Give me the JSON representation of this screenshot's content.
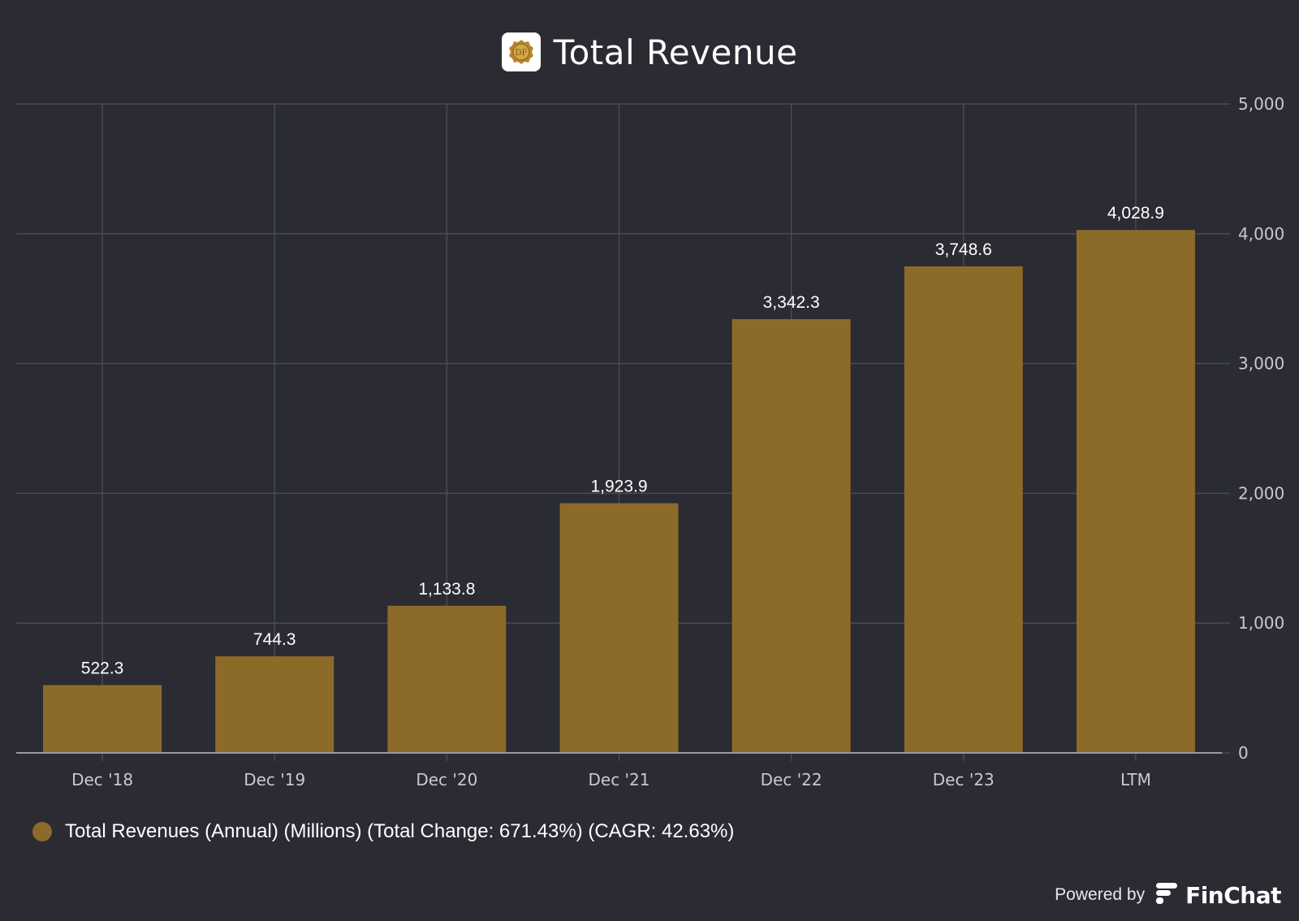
{
  "header": {
    "title": "Total Revenue",
    "logo_text": "DF",
    "logo_icon": "company-logo-icon"
  },
  "chart_data": {
    "type": "bar",
    "title": "Total Revenue",
    "categories": [
      "Dec '18",
      "Dec '19",
      "Dec '20",
      "Dec '21",
      "Dec '22",
      "Dec '23",
      "LTM"
    ],
    "series": [
      {
        "name": "Total Revenues (Annual) (Millions) (Total Change: 671.43%) (CAGR: 42.63%)",
        "values": [
          522.3,
          744.3,
          1133.8,
          1923.9,
          3342.3,
          3748.6,
          4028.9
        ],
        "value_labels": [
          "522.3",
          "744.3",
          "1,133.8",
          "1,923.9",
          "3,342.3",
          "3,748.6",
          "4,028.9"
        ]
      }
    ],
    "ylim": [
      0,
      5000
    ],
    "yticks": [
      0,
      1000,
      2000,
      3000,
      4000,
      5000
    ],
    "ytick_labels": [
      "0",
      "1,000",
      "2,000",
      "3,000",
      "4,000",
      "5,000"
    ],
    "y_axis_side": "right",
    "grid": true,
    "legend_position": "bottom-left",
    "xlabel": "",
    "ylabel": ""
  },
  "legend": {
    "label": "Total Revenues (Annual) (Millions) (Total Change: 671.43%) (CAGR: 42.63%)"
  },
  "footer": {
    "powered_by": "Powered by",
    "brand": "FinChat",
    "brand_icon": "finchat-logo-icon"
  },
  "colors": {
    "background": "#2a2b33",
    "bar": "#8c6a28",
    "grid": "#4a4b54",
    "axis": "#9a9aa2",
    "tick_text": "#c9c9cf",
    "label_text": "#ffffff"
  }
}
